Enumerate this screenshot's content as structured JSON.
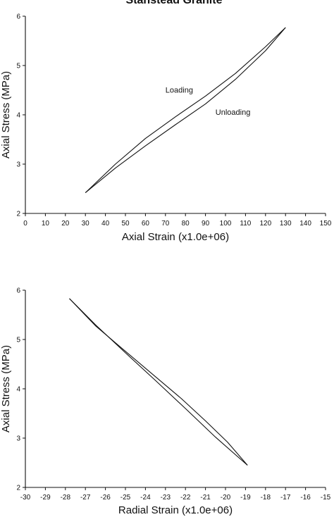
{
  "figure": {
    "title": "Stanstead Granite"
  },
  "chart_data": [
    {
      "type": "line",
      "title": "",
      "xlabel": "Axial Strain (x1.0e+06)",
      "ylabel": "Axial Stress (MPa)",
      "xlim": [
        0,
        150
      ],
      "ylim": [
        2,
        6
      ],
      "xticks": [
        0,
        10,
        20,
        30,
        40,
        50,
        60,
        70,
        80,
        90,
        100,
        110,
        120,
        130,
        140,
        150
      ],
      "yticks": [
        2,
        3,
        4,
        5,
        6
      ],
      "grid": false,
      "annotations": [
        {
          "text": "Loading",
          "x": 70,
          "y": 4.45
        },
        {
          "text": "Unloading",
          "x": 95,
          "y": 4.0
        }
      ],
      "series": [
        {
          "name": "Loading",
          "x": [
            30,
            45,
            60,
            75,
            90,
            105,
            120,
            130
          ],
          "y": [
            2.42,
            3.0,
            3.52,
            3.96,
            4.38,
            4.84,
            5.38,
            5.77
          ]
        },
        {
          "name": "Unloading",
          "x": [
            130,
            120,
            105,
            90,
            75,
            60,
            45,
            30
          ],
          "y": [
            5.77,
            5.3,
            4.72,
            4.22,
            3.8,
            3.37,
            2.92,
            2.42
          ]
        }
      ]
    },
    {
      "type": "line",
      "title": "",
      "xlabel": "Radial Strain (x1.0e+06)",
      "ylabel": "Axial Stress (MPa)",
      "xlim": [
        -30,
        -15
      ],
      "ylim": [
        2,
        6
      ],
      "xticks": [
        -30,
        -29,
        -28,
        -27,
        -26,
        -25,
        -24,
        -23,
        -22,
        -21,
        -20,
        -19,
        -18,
        -17,
        -16,
        -15
      ],
      "yticks": [
        2,
        3,
        4,
        5,
        6
      ],
      "grid": false,
      "annotations": [],
      "series": [
        {
          "name": "Loading",
          "x": [
            -27.8,
            -26.5,
            -25,
            -23.5,
            -22,
            -20.5,
            -18.9
          ],
          "y": [
            5.83,
            5.3,
            4.73,
            4.17,
            3.6,
            3.02,
            2.45
          ]
        },
        {
          "name": "Unloading",
          "x": [
            -18.9,
            -19.9,
            -21,
            -22.2,
            -23.6,
            -25.2,
            -26.5,
            -27.8
          ],
          "y": [
            2.45,
            2.92,
            3.35,
            3.8,
            4.28,
            4.83,
            5.28,
            5.83
          ]
        }
      ]
    }
  ]
}
